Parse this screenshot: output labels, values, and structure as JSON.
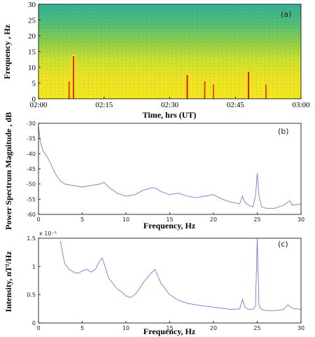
{
  "chart_data": [
    {
      "type": "heatmap",
      "panel_label": "(a)",
      "xlabel": "Time, hrs (UT)",
      "ylabel": "Frequency , Hz",
      "x_ticks": [
        "02:00",
        "02:15",
        "02:30",
        "02:45",
        "03:00"
      ],
      "x_range": [
        "02:00",
        "03:00"
      ],
      "y_ticks": [
        0,
        5,
        10,
        15,
        20,
        25,
        30
      ],
      "ylim": [
        0,
        30
      ],
      "colors": {
        "low": "#2fb0a0",
        "mid": "#b8d63a",
        "high": "#f2e21c",
        "peak": "#d81e12"
      },
      "spikes": [
        {
          "t": "02:08",
          "f_top": 14,
          "strength": 0.9
        },
        {
          "t": "02:07",
          "f_top": 6,
          "strength": 0.8
        },
        {
          "t": "02:34",
          "f_top": 8,
          "strength": 1.0
        },
        {
          "t": "02:38",
          "f_top": 6,
          "strength": 0.8
        },
        {
          "t": "02:40",
          "f_top": 5,
          "strength": 0.7
        },
        {
          "t": "02:48",
          "f_top": 9,
          "strength": 1.0
        },
        {
          "t": "02:52",
          "f_top": 5,
          "strength": 0.7
        }
      ]
    },
    {
      "type": "line",
      "panel_label": "(b)",
      "xlabel": "Frequency, Hz",
      "ylabel": "Power Spectrum Magnitude , dB",
      "xlim": [
        0,
        30
      ],
      "ylim": [
        -60,
        -30
      ],
      "x_ticks": [
        0,
        5,
        10,
        15,
        20,
        25,
        30
      ],
      "y_ticks": [
        -30,
        -35,
        -40,
        -45,
        -50,
        -55,
        -60
      ],
      "color": "#7a7ad0",
      "series": [
        {
          "x": [
            0,
            0.2,
            0.5,
            1,
            1.5,
            2,
            2.5,
            3,
            4,
            5,
            6,
            7,
            7.5,
            8,
            9,
            10,
            11,
            12,
            13,
            13.5,
            14,
            15,
            16,
            17,
            18,
            19,
            20,
            21,
            22,
            23,
            23.3,
            23.6,
            24,
            24.5,
            24.8,
            25,
            25.2,
            25.5,
            26,
            27,
            28,
            28.7,
            29,
            30
          ],
          "y": [
            -31,
            -36,
            -39,
            -41,
            -44,
            -47,
            -49,
            -50,
            -50.5,
            -51,
            -50.5,
            -50,
            -49.5,
            -51,
            -53,
            -54,
            -53.5,
            -52,
            -51.2,
            -51.5,
            -52.5,
            -53.5,
            -53,
            -54,
            -54.5,
            -54,
            -53.5,
            -55,
            -56,
            -56.5,
            -54,
            -56,
            -57,
            -57.5,
            -54,
            -46.5,
            -54,
            -57.5,
            -58,
            -58,
            -57,
            -55.5,
            -57,
            -56.5
          ]
        }
      ]
    },
    {
      "type": "line",
      "panel_label": "(c)",
      "xlabel": "Frequency, Hz",
      "ylabel": "Intensity, nT²/Hz",
      "y_multiplier": "x 10⁻⁵",
      "xlim": [
        0,
        30
      ],
      "ylim": [
        0,
        1.5
      ],
      "x_ticks": [
        0,
        5,
        10,
        15,
        20,
        25,
        30
      ],
      "y_ticks": [
        0,
        0.5,
        1,
        1.5
      ],
      "color": "#7a7ad0",
      "series": [
        {
          "x": [
            2.5,
            2.8,
            3,
            3.5,
            4,
            4.5,
            5,
            5.5,
            6,
            6.5,
            7,
            7.3,
            7.6,
            8,
            8.5,
            9,
            9.5,
            10,
            10.5,
            11,
            11.5,
            12,
            12.5,
            13,
            13.3,
            13.6,
            14,
            15,
            16,
            17,
            18,
            19,
            20,
            21,
            22,
            23,
            23.3,
            23.6,
            24,
            24.5,
            24.8,
            25,
            25.2,
            25.5,
            26,
            27,
            28,
            28.5,
            29,
            30
          ],
          "y": [
            1.45,
            1.2,
            1.05,
            0.95,
            0.9,
            0.88,
            0.92,
            0.95,
            0.9,
            0.95,
            1.1,
            1.15,
            1.0,
            0.8,
            0.7,
            0.6,
            0.55,
            0.48,
            0.45,
            0.5,
            0.6,
            0.72,
            0.82,
            0.9,
            0.95,
            0.85,
            0.7,
            0.5,
            0.4,
            0.35,
            0.32,
            0.3,
            0.28,
            0.26,
            0.24,
            0.25,
            0.42,
            0.28,
            0.24,
            0.24,
            0.3,
            1.5,
            0.3,
            0.24,
            0.22,
            0.22,
            0.24,
            0.32,
            0.26,
            0.24
          ]
        }
      ]
    }
  ]
}
